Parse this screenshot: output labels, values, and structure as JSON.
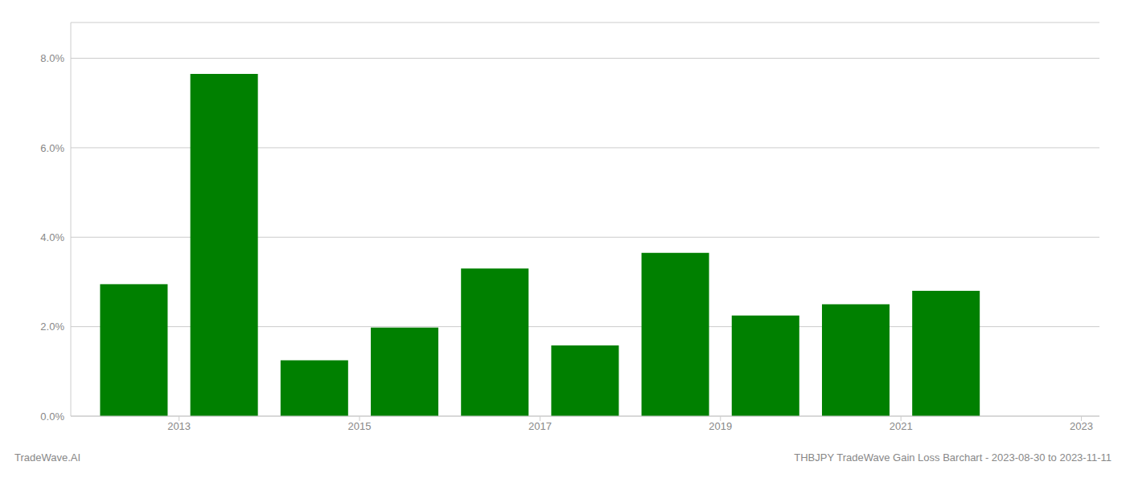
{
  "chart_data": {
    "type": "bar",
    "x": [
      2013,
      2014,
      2015,
      2016,
      2017,
      2018,
      2019,
      2020,
      2021,
      2022
    ],
    "values": [
      0.0295,
      0.0765,
      0.0125,
      0.0198,
      0.033,
      0.0158,
      0.0365,
      0.0225,
      0.025,
      0.028
    ],
    "color": "#008000",
    "xlim": [
      2012.3,
      2023.7
    ],
    "xticks": [
      {
        "value": 2013.5,
        "label": "2013"
      },
      {
        "value": 2015.5,
        "label": "2015"
      },
      {
        "value": 2017.5,
        "label": "2017"
      },
      {
        "value": 2019.5,
        "label": "2019"
      },
      {
        "value": 2021.5,
        "label": "2021"
      },
      {
        "value": 2023.5,
        "label": "2023"
      }
    ],
    "ylim": [
      0,
      0.088
    ],
    "yticks": [
      {
        "value": 0.0,
        "label": "0.0%"
      },
      {
        "value": 0.02,
        "label": "2.0%"
      },
      {
        "value": 0.04,
        "label": "4.0%"
      },
      {
        "value": 0.06,
        "label": "6.0%"
      },
      {
        "value": 0.08,
        "label": "8.0%"
      }
    ],
    "grid": true,
    "annotations": [
      "TradeWave.AI",
      "THBJPY TradeWave Gain Loss Barchart - 2023-08-30 to 2023-11-11"
    ]
  }
}
